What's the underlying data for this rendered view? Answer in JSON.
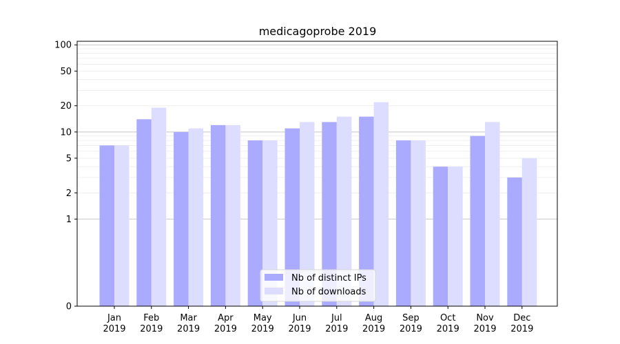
{
  "chart_data": {
    "type": "bar",
    "title": "medicagoprobe 2019",
    "xlabel": "",
    "ylabel": "",
    "yscale": "symlog",
    "ylim": [
      0,
      110
    ],
    "yticks": [
      0,
      1,
      2,
      5,
      10,
      20,
      50,
      100
    ],
    "grid": "y",
    "legend_position": "bottom-center",
    "categories": [
      [
        "Jan",
        "2019"
      ],
      [
        "Feb",
        "2019"
      ],
      [
        "Mar",
        "2019"
      ],
      [
        "Apr",
        "2019"
      ],
      [
        "May",
        "2019"
      ],
      [
        "Jun",
        "2019"
      ],
      [
        "Jul",
        "2019"
      ],
      [
        "Aug",
        "2019"
      ],
      [
        "Sep",
        "2019"
      ],
      [
        "Oct",
        "2019"
      ],
      [
        "Nov",
        "2019"
      ],
      [
        "Dec",
        "2019"
      ]
    ],
    "series": [
      {
        "name": "Nb of distinct IPs",
        "color": "#aaaaff",
        "values": [
          7,
          14,
          10,
          12,
          8,
          11,
          13,
          15,
          8,
          4,
          9,
          3
        ]
      },
      {
        "name": "Nb of downloads",
        "color": "#ddddff",
        "values": [
          7,
          19,
          11,
          12,
          8,
          13,
          15,
          22,
          8,
          4,
          13,
          5
        ]
      }
    ]
  }
}
